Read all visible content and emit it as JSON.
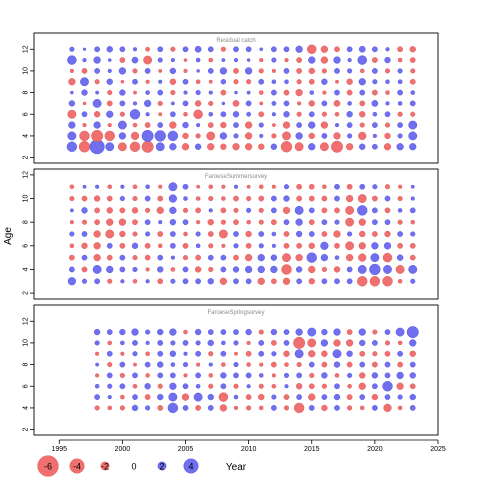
{
  "chart_data": {
    "type": "scatter",
    "xlabel": "Year",
    "ylabel": "Age",
    "xlim": [
      1993.0,
      2025.0
    ],
    "x_ticks": [
      1995,
      2000,
      2005,
      2010,
      2015,
      2020,
      2025
    ],
    "y_ticks": [
      2,
      4,
      6,
      8,
      10,
      12
    ],
    "colors": {
      "positive": "#6f6ff0",
      "negative": "#f07070"
    },
    "legend": {
      "position": "bottom",
      "values": [
        -6,
        -4,
        -2,
        0,
        2,
        4
      ],
      "labels": [
        "-6",
        "-4",
        "-2",
        "0",
        "2",
        "4"
      ]
    },
    "panels": [
      {
        "title": "Residual catch",
        "ylim": [
          1.5,
          13.5
        ],
        "years": [
          1996,
          1997,
          1998,
          1999,
          2000,
          2001,
          2002,
          2003,
          2004,
          2005,
          2006,
          2007,
          2008,
          2009,
          2010,
          2011,
          2012,
          2013,
          2014,
          2015,
          2016,
          2017,
          2018,
          2019,
          2020,
          2021,
          2022,
          2023
        ],
        "ages": [
          3,
          4,
          5,
          6,
          7,
          8,
          9,
          10,
          11,
          12
        ],
        "values": [
          [
            2.5,
            2.0,
            1.5,
            -2.0,
            1.2,
            0.3,
            -1.5,
            -0.5,
            2.2,
            0.8
          ],
          [
            -2.8,
            -2.5,
            -0.5,
            1.0,
            -0.3,
            1.2,
            2.0,
            -1.0,
            0.5,
            0.2
          ],
          [
            4.0,
            -3.0,
            1.5,
            -1.2,
            2.0,
            0.4,
            -0.8,
            1.0,
            1.5,
            1.0
          ],
          [
            2.0,
            -2.5,
            -0.5,
            1.5,
            -1.0,
            -0.8,
            1.2,
            0.5,
            0.3,
            1.2
          ],
          [
            -2.0,
            1.5,
            2.0,
            -0.8,
            1.0,
            1.2,
            -0.3,
            1.5,
            -1.0,
            1.0
          ],
          [
            -2.5,
            -1.8,
            -0.6,
            2.5,
            0.5,
            -0.4,
            1.0,
            -0.8,
            1.3,
            0.5
          ],
          [
            -3.0,
            3.0,
            -1.0,
            0.5,
            1.5,
            0.6,
            -0.5,
            1.0,
            -2.0,
            -0.7
          ],
          [
            2.0,
            2.8,
            1.0,
            -0.4,
            -0.8,
            1.0,
            0.5,
            -0.4,
            0.8,
            1.0
          ],
          [
            1.5,
            2.5,
            -1.5,
            1.0,
            0.4,
            -0.8,
            -1.2,
            1.2,
            0.5,
            -0.8
          ],
          [
            -1.5,
            -1.2,
            1.2,
            -0.6,
            1.0,
            0.5,
            1.0,
            -0.5,
            -0.3,
            1.0
          ],
          [
            1.2,
            -0.8,
            0.5,
            -2.2,
            -1.2,
            0.8,
            -0.6,
            0.3,
            0.6,
            1.3
          ],
          [
            -1.5,
            -2.0,
            -1.0,
            0.6,
            -0.8,
            0.5,
            -0.4,
            1.0,
            -0.6,
            1.0
          ],
          [
            -1.2,
            1.5,
            -1.2,
            1.0,
            0.3,
            -1.0,
            0.9,
            1.5,
            0.4,
            -0.8
          ],
          [
            -1.5,
            0.8,
            1.0,
            1.2,
            -1.3,
            0.3,
            -0.8,
            -1.0,
            0.5,
            1.0
          ],
          [
            -1.5,
            -1.5,
            -1.5,
            0.7,
            1.0,
            0.4,
            -0.8,
            1.5,
            0.3,
            1.0
          ],
          [
            -1.2,
            0.5,
            0.8,
            -1.0,
            -0.4,
            -0.6,
            1.0,
            -0.8,
            -0.5,
            0.3
          ],
          [
            1.2,
            -0.8,
            -0.4,
            0.5,
            0.7,
            1.0,
            0.6,
            -0.5,
            0.8,
            1.0
          ],
          [
            -2.8,
            -2.0,
            -1.5,
            1.2,
            1.0,
            -1.0,
            0.6,
            1.0,
            -0.5,
            1.0
          ],
          [
            -2.0,
            1.5,
            1.0,
            -0.8,
            -0.5,
            -1.5,
            -0.8,
            -1.0,
            -1.0,
            1.5
          ],
          [
            1.5,
            -1.2,
            1.5,
            1.0,
            -1.2,
            0.6,
            -1.0,
            -1.2,
            1.5,
            -2.2
          ],
          [
            -2.0,
            1.0,
            -1.5,
            -0.8,
            1.0,
            -0.5,
            1.2,
            -0.8,
            -1.5,
            -1.5
          ],
          [
            -3.0,
            -1.5,
            0.5,
            -0.6,
            -1.3,
            1.0,
            -0.4,
            1.0,
            1.5,
            -1.0
          ],
          [
            -1.5,
            0.8,
            1.0,
            1.2,
            0.6,
            -1.0,
            -1.2,
            0.8,
            0.5,
            1.0
          ],
          [
            1.2,
            -1.8,
            -0.8,
            -1.2,
            -1.0,
            1.0,
            1.5,
            -0.6,
            2.2,
            1.3
          ],
          [
            1.0,
            0.5,
            1.0,
            0.6,
            1.3,
            -1.0,
            0.8,
            1.0,
            -1.0,
            1.0
          ],
          [
            -1.5,
            -1.2,
            -0.8,
            1.0,
            0.5,
            -0.6,
            0.6,
            -0.8,
            1.2,
            0.5
          ],
          [
            1.5,
            0.8,
            1.0,
            -0.8,
            0.6,
            1.0,
            0.7,
            0.8,
            -0.6,
            -1.0
          ],
          [
            1.5,
            2.0,
            2.0,
            -0.8,
            1.0,
            0.6,
            -1.0,
            -0.8,
            -1.0,
            -1.2
          ]
        ]
      },
      {
        "title": "FaroeseSummersurvey",
        "ylim": [
          1.5,
          12.5
        ],
        "years": [
          1996,
          1997,
          1998,
          1999,
          2000,
          2001,
          2002,
          2003,
          2004,
          2005,
          2006,
          2007,
          2008,
          2009,
          2010,
          2011,
          2012,
          2013,
          2014,
          2015,
          2016,
          2017,
          2018,
          2019,
          2020,
          2021,
          2022,
          2023
        ],
        "ages": [
          3,
          4,
          5,
          6,
          7,
          8,
          9,
          10,
          11
        ],
        "values": [
          [
            1.8,
            1.0,
            -1.0,
            -0.6,
            0.8,
            -0.5,
            0.4,
            -0.8,
            -0.6
          ],
          [
            0.8,
            -1.0,
            1.0,
            -1.2,
            1.0,
            -0.8,
            1.2,
            -1.0,
            0.4
          ],
          [
            1.0,
            2.0,
            -1.5,
            -1.5,
            -1.5,
            -1.0,
            -1.0,
            -1.2,
            0.5
          ],
          [
            -0.8,
            1.5,
            -1.0,
            1.0,
            -2.0,
            -1.5,
            -1.2,
            -1.0,
            -0.6
          ],
          [
            0.5,
            1.0,
            1.0,
            -1.0,
            -1.2,
            -1.5,
            -1.0,
            0.8,
            0.5
          ],
          [
            -0.6,
            0.8,
            -0.8,
            1.2,
            -0.8,
            -1.0,
            -1.2,
            -0.8,
            -0.6
          ],
          [
            0.5,
            -0.5,
            -1.0,
            -1.0,
            0.8,
            1.0,
            -0.8,
            1.0,
            0.6
          ],
          [
            -1.0,
            1.2,
            1.0,
            -0.6,
            -1.0,
            0.5,
            -1.5,
            -1.0,
            -0.5
          ],
          [
            0.8,
            -0.6,
            0.5,
            1.0,
            1.0,
            1.2,
            1.5,
            1.8,
            2.0
          ],
          [
            1.0,
            1.0,
            -0.8,
            -1.0,
            -0.6,
            1.0,
            -0.8,
            0.6,
            1.0
          ],
          [
            1.0,
            -1.2,
            -1.0,
            0.6,
            0.8,
            -0.5,
            -1.0,
            -0.6,
            -0.4
          ],
          [
            1.2,
            -0.8,
            1.0,
            -0.8,
            -1.0,
            -1.2,
            0.5,
            -0.8,
            -0.6
          ],
          [
            -1.5,
            1.0,
            1.0,
            -0.5,
            -2.0,
            -0.8,
            -1.0,
            -0.6,
            -0.5
          ],
          [
            1.0,
            1.2,
            -1.0,
            0.8,
            1.0,
            -1.0,
            -0.8,
            -1.0,
            0.5
          ],
          [
            1.0,
            1.5,
            -1.5,
            -1.0,
            -1.2,
            -0.6,
            0.8,
            -0.8,
            -0.4
          ],
          [
            -1.5,
            1.5,
            1.5,
            0.8,
            1.0,
            -0.8,
            -0.8,
            -1.0,
            -0.6
          ],
          [
            -1.0,
            1.5,
            1.2,
            0.5,
            0.6,
            -1.0,
            1.0,
            1.0,
            -0.5
          ],
          [
            -1.5,
            -2.5,
            -2.0,
            -1.0,
            -1.0,
            1.0,
            -1.5,
            1.2,
            0.8
          ],
          [
            1.0,
            1.2,
            -1.5,
            -1.0,
            1.2,
            1.5,
            2.0,
            -1.0,
            -1.0
          ],
          [
            -1.2,
            -1.5,
            2.5,
            -1.2,
            1.0,
            -1.0,
            1.0,
            -1.0,
            -1.0
          ],
          [
            1.0,
            -0.8,
            1.5,
            1.8,
            -1.0,
            1.0,
            -1.0,
            -1.0,
            -0.6
          ],
          [
            1.0,
            -1.2,
            0.6,
            -1.0,
            -1.5,
            0.8,
            -1.0,
            1.0,
            1.0
          ],
          [
            1.0,
            1.0,
            -1.5,
            -2.0,
            0.8,
            -2.0,
            -2.0,
            -1.5,
            -1.0
          ],
          [
            -2.5,
            2.0,
            -1.8,
            -1.5,
            -1.2,
            -1.5,
            2.5,
            -2.0,
            1.0
          ],
          [
            -2.5,
            2.8,
            2.0,
            1.5,
            -1.0,
            1.0,
            1.0,
            -1.0,
            0.8
          ],
          [
            -2.5,
            2.0,
            -2.2,
            1.5,
            -1.2,
            1.0,
            -1.0,
            1.0,
            -0.8
          ],
          [
            -0.6,
            -2.0,
            1.2,
            -1.0,
            1.0,
            -0.8,
            0.6,
            -0.8,
            -0.5
          ],
          [
            0.8,
            2.0,
            -1.0,
            -1.0,
            0.8,
            -0.6,
            1.0,
            0.5,
            0.4
          ]
        ]
      },
      {
        "title": "FaroeseSpringsurvey",
        "ylim": [
          1.5,
          13.5
        ],
        "years": [
          1998,
          1999,
          2000,
          2001,
          2002,
          2003,
          2004,
          2005,
          2006,
          2007,
          2008,
          2009,
          2010,
          2011,
          2012,
          2013,
          2014,
          2015,
          2016,
          2017,
          2018,
          2019,
          2020,
          2021,
          2022,
          2023
        ],
        "ages": [
          4,
          5,
          6,
          7,
          8,
          9,
          10,
          11
        ],
        "values": [
          [
            -0.8,
            1.0,
            0.6,
            -0.5,
            0.4,
            -0.5,
            0.8,
            1.2
          ],
          [
            -0.6,
            0.5,
            0.8,
            1.0,
            -0.8,
            1.0,
            -0.6,
            1.0
          ],
          [
            -0.8,
            -0.6,
            1.0,
            -0.8,
            1.0,
            -0.5,
            0.6,
            1.2
          ],
          [
            1.2,
            1.0,
            -0.6,
            1.0,
            -0.4,
            0.8,
            1.0,
            1.5
          ],
          [
            0.8,
            -1.0,
            1.2,
            -0.6,
            1.0,
            -0.6,
            0.5,
            0.8
          ],
          [
            -1.0,
            1.2,
            -0.8,
            1.0,
            1.2,
            1.0,
            1.0,
            1.2
          ],
          [
            2.5,
            2.0,
            1.5,
            1.0,
            0.6,
            1.2,
            0.8,
            1.5
          ],
          [
            1.0,
            -1.5,
            1.0,
            -0.5,
            0.8,
            0.5,
            1.0,
            -0.6
          ],
          [
            -1.0,
            2.0,
            0.6,
            1.0,
            -0.5,
            1.0,
            0.8,
            1.2
          ],
          [
            1.0,
            1.2,
            -0.8,
            -0.6,
            0.5,
            -0.8,
            1.2,
            1.0
          ],
          [
            -1.5,
            -2.2,
            1.0,
            1.2,
            -0.6,
            1.0,
            0.6,
            1.0
          ],
          [
            -0.5,
            0.6,
            -0.8,
            1.0,
            0.8,
            -0.4,
            0.8,
            1.0
          ],
          [
            -0.8,
            -1.0,
            0.5,
            1.0,
            -0.6,
            -1.0,
            -0.5,
            1.2
          ],
          [
            -0.6,
            -1.2,
            -0.8,
            0.6,
            -0.5,
            1.0,
            1.0,
            -0.8
          ],
          [
            1.0,
            0.8,
            -0.6,
            -0.5,
            -1.0,
            0.8,
            -1.0,
            1.2
          ],
          [
            -0.8,
            -1.0,
            0.5,
            0.8,
            -0.6,
            -1.2,
            1.0,
            1.0
          ],
          [
            -2.5,
            1.0,
            -1.2,
            1.0,
            -0.8,
            2.0,
            -3.0,
            1.5
          ],
          [
            1.0,
            -1.5,
            -1.0,
            -0.8,
            1.0,
            -1.5,
            -2.0,
            2.0
          ],
          [
            -1.2,
            1.0,
            -0.8,
            1.2,
            -1.0,
            -1.2,
            1.5,
            1.2
          ],
          [
            1.0,
            1.2,
            1.0,
            -0.6,
            1.2,
            2.0,
            -1.5,
            1.5
          ],
          [
            -0.8,
            -1.0,
            -0.6,
            0.8,
            -1.0,
            1.2,
            -1.5,
            -1.0
          ],
          [
            -0.6,
            1.0,
            -1.5,
            -1.2,
            1.0,
            -1.0,
            1.2,
            1.5
          ],
          [
            1.0,
            -1.2,
            1.0,
            1.2,
            -1.0,
            -0.8,
            1.0,
            -0.8
          ],
          [
            -1.8,
            1.0,
            2.5,
            1.0,
            1.0,
            -1.0,
            -0.8,
            1.0
          ],
          [
            -0.6,
            0.8,
            -1.5,
            1.5,
            -1.0,
            1.0,
            -0.6,
            2.0
          ],
          [
            1.0,
            1.2,
            -1.0,
            1.2,
            1.0,
            -1.2,
            1.5,
            3.0
          ]
        ]
      }
    ]
  }
}
